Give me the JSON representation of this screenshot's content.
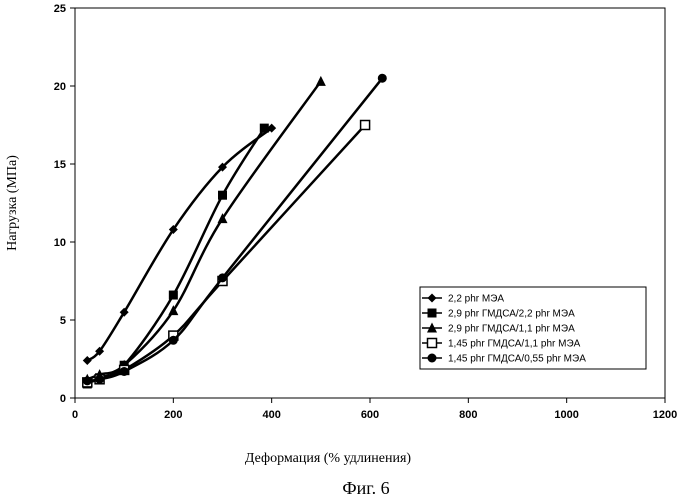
{
  "figure": {
    "caption": "Фиг. 6"
  },
  "chart_data": {
    "type": "line",
    "xlabel": "Деформация (% удлинения)",
    "ylabel": "Нагрузка (МПа)",
    "xlim": [
      0,
      1200
    ],
    "ylim": [
      0,
      25
    ],
    "xticks": [
      0,
      200,
      400,
      600,
      800,
      1000,
      1200
    ],
    "yticks": [
      0,
      5,
      10,
      15,
      20,
      25
    ],
    "grid": false,
    "legend_position": "center-right",
    "series": [
      {
        "name": "2,2 phr МЭА",
        "marker": "diamond",
        "x": [
          25,
          50,
          100,
          200,
          300,
          400
        ],
        "y": [
          2.4,
          3.0,
          5.5,
          10.8,
          14.8,
          17.3
        ]
      },
      {
        "name": "2,9 phr ГМДСА/2,2 phr МЭА",
        "marker": "square",
        "x": [
          25,
          50,
          100,
          200,
          300,
          385
        ],
        "y": [
          0.9,
          1.3,
          2.1,
          6.6,
          13.0,
          17.3
        ]
      },
      {
        "name": "2,9 phr ГМДСА/1,1 phr МЭА",
        "marker": "triangle",
        "x": [
          25,
          50,
          100,
          200,
          300,
          500
        ],
        "y": [
          1.2,
          1.5,
          2.1,
          5.6,
          11.5,
          20.3
        ]
      },
      {
        "name": "1,45 phr ГМДСА/1,1 phr МЭА",
        "marker": "square-open",
        "x": [
          25,
          50,
          100,
          200,
          300,
          590
        ],
        "y": [
          1.0,
          1.2,
          1.8,
          4.0,
          7.5,
          17.5
        ]
      },
      {
        "name": "1,45 phr ГМДСА/0,55 phr МЭА",
        "marker": "circle",
        "x": [
          25,
          50,
          100,
          200,
          300,
          625
        ],
        "y": [
          1.1,
          1.2,
          1.7,
          3.7,
          7.7,
          20.5
        ]
      }
    ]
  }
}
